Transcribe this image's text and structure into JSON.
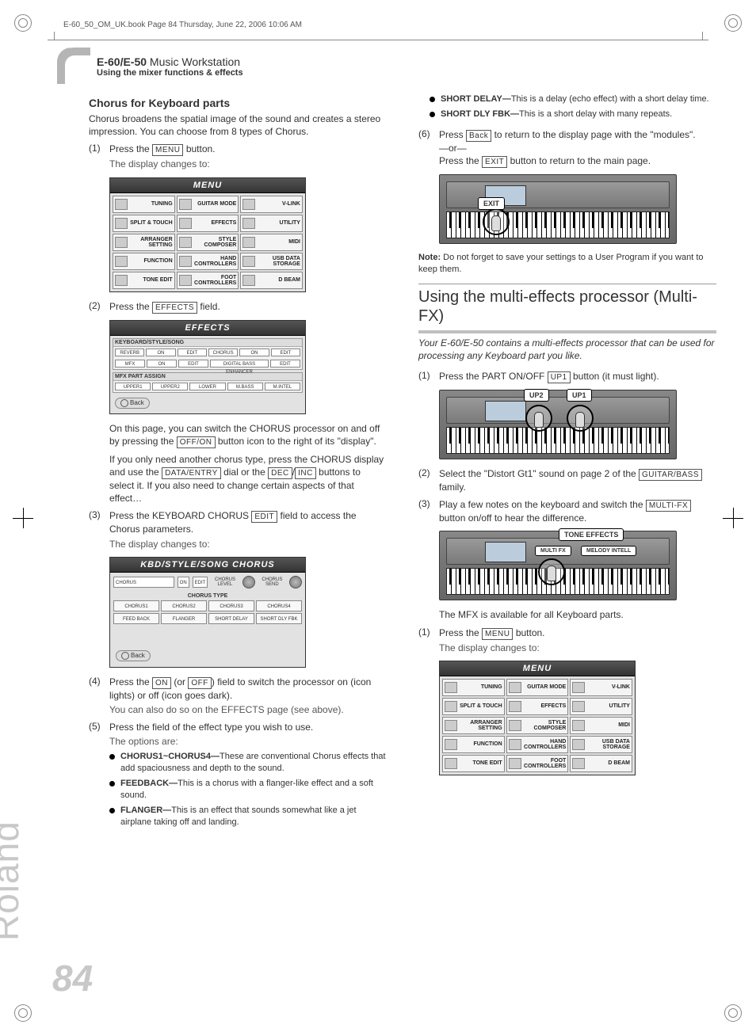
{
  "run_header": "E-60_50_OM_UK.book  Page 84  Thursday, June 22, 2006  10:06 AM",
  "header": {
    "title_bold": "E-60/E-50",
    "title_rest": " Music Workstation",
    "subtitle": "Using the mixer functions & effects"
  },
  "brand": "Roland",
  "page_number": "84",
  "buttons": {
    "menu": "MENU",
    "effects": "EFFECTS",
    "offon": "OFF/ON",
    "dataentry": "DATA/ENTRY",
    "dec": "DEC",
    "inc": "INC",
    "edit": "EDIT",
    "on": "ON",
    "off": "OFF",
    "back": "Back",
    "exit": "EXIT",
    "up1": "UP1",
    "guitarbass": "GUITAR/BASS",
    "multifx": "MULTI-FX"
  },
  "left": {
    "h3": "Chorus for Keyboard parts",
    "intro": "Chorus broadens the spatial image of the sound and creates a stereo impression. You can choose from 8 types of Chorus.",
    "step1_a": "Press the ",
    "step1_b": " button.",
    "step1_sub": "The display changes to:",
    "step2_a": "Press the ",
    "step2_b": " field.",
    "after_ss2_p1a": "On this page, you can switch the CHORUS processor on and off by pressing the ",
    "after_ss2_p1b": " button icon to the right of its \"display\".",
    "after_ss2_p2a": "If you only need another chorus type, press the CHORUS display and use the ",
    "after_ss2_p2b": " dial or the ",
    "after_ss2_p2c": "/",
    "after_ss2_p2d": " buttons to select it. If you also need to change certain aspects of that effect…",
    "step3_a": "Press the KEYBOARD CHORUS ",
    "step3_b": " field to access the Chorus parameters.",
    "step3_sub": "The display changes to:",
    "step4_a": "Press the ",
    "step4_b": " (or ",
    "step4_c": ") field to switch the proces­sor on (icon lights) or off (icon goes dark).",
    "step4_sub": "You can also do so on the EFFECTS page (see above).",
    "step5": "Press the field of the effect type you wish to use.",
    "step5_sub": "The options are:",
    "bullets": [
      {
        "b": "CHORUS1~CHORUS4—",
        "t": "These are conventional Chorus effects that add spaciousness and depth to the sound."
      },
      {
        "b": "FEEDBACK—",
        "t": "This is a chorus with a flanger-like effect and a soft sound."
      },
      {
        "b": "FLANGER—",
        "t": "This is an effect that sounds somewhat like a jet airplane taking off and landing."
      }
    ]
  },
  "right": {
    "top_bullets": [
      {
        "b": "SHORT DELAY—",
        "t": "This is a delay (echo effect) with a short delay time."
      },
      {
        "b": "SHORT DLY FBK—",
        "t": "This is a short delay with many repeats."
      }
    ],
    "step6_a": "Press ",
    "step6_b": " to return to the display page with the \"modules\".",
    "step6_or": "—or—",
    "step6_c": "Press the ",
    "step6_d": " button to return to the main page.",
    "kb1_label": "EXIT",
    "note_b": "Note:",
    "note_t": " Do not forget to save your settings to a User Program if you want to keep them.",
    "h2": "Using the multi-effects processor (Multi-FX)",
    "h2_sub": "Your E-60/E-50 contains a multi-effects processor that can be used for processing any Keyboard part you like.",
    "mstep1_a": "Press the PART ON/OFF ",
    "mstep1_b": " button (it must light).",
    "kb2_l1": "UP2",
    "kb2_l2": "UP1",
    "mstep2_a": "Select the \"Distort Gt1\" sound on page 2 of the ",
    "mstep2_b": " family.",
    "mstep3_a": "Play a few notes on the keyboard and switch the ",
    "mstep3_b": " button on/off to hear the difference.",
    "kb3_title": "TONE EFFECTS",
    "kb3_l1": "MULTI FX",
    "kb3_l2": "MELODY INTELL",
    "after_kb3": "The MFX is available for all Keyboard parts.",
    "mstep1b_a": "Press the ",
    "mstep1b_b": " button.",
    "mstep1b_sub": "The display changes to:"
  },
  "menu_screenshot": {
    "title": "MENU",
    "cells": [
      "TUNING",
      "GUITAR MODE",
      "V-LINK",
      "SPLIT & TOUCH",
      "EFFECTS",
      "UTILITY",
      "ARRANGER SETTING",
      "STYLE COMPOSER",
      "MIDI",
      "FUNCTION",
      "HAND CONTROLLERS",
      "USB DATA STORAGE",
      "TONE EDIT",
      "FOOT CONTROLLERS",
      "D BEAM"
    ]
  },
  "effects_screenshot": {
    "title": "EFFECTS",
    "group1": "KEYBOARD/STYLE/SONG",
    "group2": "MFX  PART  ASSIGN",
    "assign": [
      "UPPER1",
      "UPPER2",
      "LOWER",
      "M.BASS",
      "M.INTEL"
    ],
    "back": "Back"
  },
  "chorus_screenshot": {
    "title": "KBD/STYLE/SONG CHORUS",
    "level": "CHORUS LEVEL",
    "send": "CHORUS SEND",
    "type_lbl": "CHORUS TYPE",
    "types": [
      "CHORUS1",
      "CHORUS2",
      "CHORUS3",
      "CHORUS4",
      "FEED BACK",
      "FLANGER",
      "SHORT DELAY",
      "SHORT DLY FBK"
    ],
    "back": "Back"
  },
  "colors": {
    "grey_border": "#b5b5b5",
    "text": "#333333",
    "faint": "#c8c8c8"
  }
}
